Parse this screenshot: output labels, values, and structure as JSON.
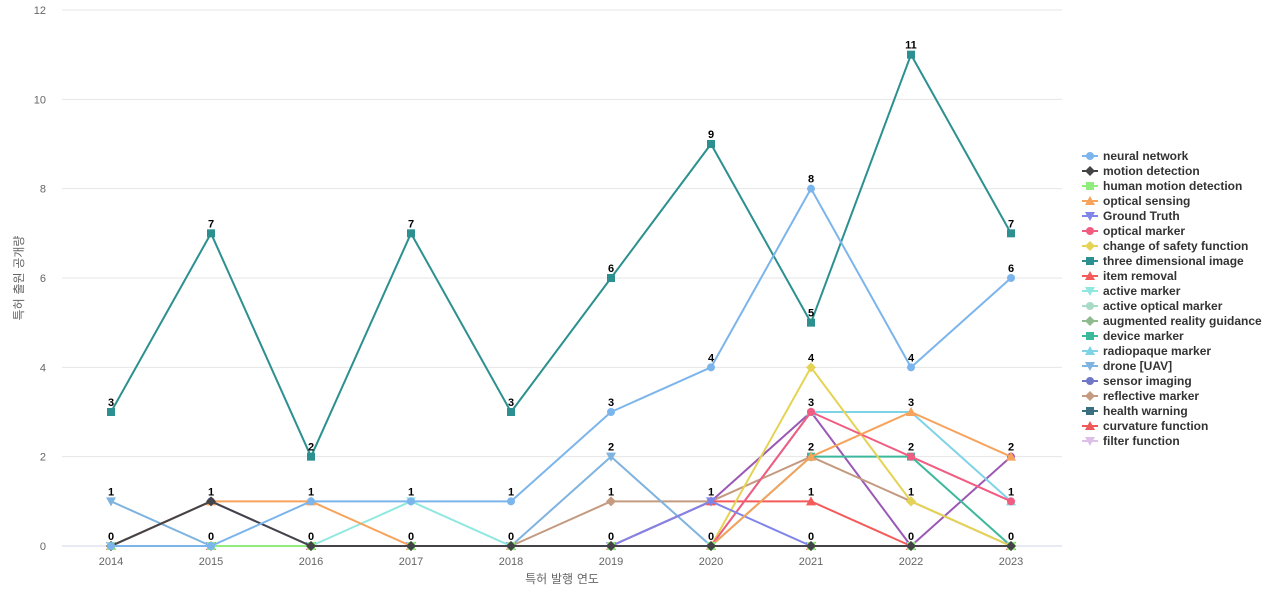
{
  "chart_data": {
    "type": "line",
    "xlabel": "특허 발행 연도",
    "ylabel": "특허 출원 공개량",
    "x": [
      "2014",
      "2015",
      "2016",
      "2017",
      "2018",
      "2019",
      "2020",
      "2021",
      "2022",
      "2023"
    ],
    "ylim": [
      0,
      12
    ],
    "yticks": [
      "0",
      "2",
      "4",
      "6",
      "8",
      "10",
      "12"
    ],
    "grid": true,
    "legend_position": "right",
    "series": [
      {
        "name": "neural network",
        "color": "#7cb5ec",
        "marker": "circle",
        "values": [
          0,
          0,
          1,
          1,
          1,
          3,
          4,
          8,
          4,
          6
        ]
      },
      {
        "name": "motion detection",
        "color": "#434348",
        "marker": "diamond",
        "values": [
          0,
          1,
          0,
          0,
          0,
          0,
          0,
          0,
          0,
          0
        ]
      },
      {
        "name": "human motion detection",
        "color": "#90ed7d",
        "marker": "square",
        "values": [
          0,
          0,
          0,
          0,
          0,
          0,
          0,
          0,
          0,
          0
        ]
      },
      {
        "name": "optical sensing",
        "color": "#f7a35c",
        "marker": "triangle",
        "values": [
          0,
          1,
          1,
          0,
          0,
          0,
          0,
          2,
          3,
          2
        ]
      },
      {
        "name": "Ground Truth",
        "color": "#8085e9",
        "marker": "triangle-down",
        "values": [
          0,
          0,
          0,
          0,
          0,
          0,
          1,
          0,
          0,
          0
        ]
      },
      {
        "name": "optical marker",
        "color": "#f15c80",
        "marker": "circle",
        "values": [
          0,
          0,
          0,
          0,
          0,
          0,
          0,
          3,
          2,
          1
        ]
      },
      {
        "name": "change of safety function",
        "color": "#e4d354",
        "marker": "diamond",
        "values": [
          0,
          0,
          0,
          0,
          0,
          0,
          0,
          4,
          1,
          0
        ]
      },
      {
        "name": "three dimensional image",
        "color": "#2b908f",
        "marker": "square",
        "values": [
          3,
          7,
          2,
          7,
          3,
          6,
          9,
          5,
          11,
          7
        ]
      },
      {
        "name": "item removal",
        "color": "#f45b5b",
        "marker": "triangle",
        "values": [
          0,
          0,
          0,
          0,
          0,
          0,
          1,
          1,
          0,
          0
        ]
      },
      {
        "name": "active marker",
        "color": "#91e8e1",
        "marker": "triangle-down",
        "values": [
          0,
          0,
          0,
          1,
          0,
          0,
          0,
          0,
          0,
          0
        ]
      },
      {
        "name": "active optical marker",
        "color": "#a8dbc5",
        "marker": "circle",
        "values": [
          0,
          0,
          0,
          0,
          0,
          0,
          0,
          0,
          0,
          0
        ]
      },
      {
        "name": "augmented reality guidance",
        "color": "#8fbc8f",
        "marker": "diamond",
        "values": [
          0,
          0,
          0,
          0,
          0,
          0,
          0,
          0,
          0,
          0
        ]
      },
      {
        "name": "device marker",
        "color": "#3cb89c",
        "marker": "square",
        "values": [
          0,
          0,
          0,
          0,
          0,
          0,
          0,
          2,
          2,
          0
        ]
      },
      {
        "name": "radiopaque marker",
        "color": "#7fd3e6",
        "marker": "triangle",
        "values": [
          0,
          0,
          0,
          0,
          0,
          0,
          0,
          3,
          3,
          1
        ]
      },
      {
        "name": "drone [UAV]",
        "color": "#7fb3e0",
        "marker": "triangle-down",
        "values": [
          1,
          0,
          0,
          0,
          0,
          2,
          0,
          0,
          0,
          0
        ]
      },
      {
        "name": "sensor imaging",
        "color": "#6f78c8",
        "marker": "circle",
        "values": [
          0,
          1,
          0,
          0,
          0,
          0,
          0,
          0,
          0,
          0
        ]
      },
      {
        "name": "reflective marker",
        "color": "#c49a80",
        "marker": "diamond",
        "values": [
          0,
          0,
          0,
          0,
          0,
          1,
          1,
          2,
          1,
          0
        ]
      },
      {
        "name": "health warning",
        "color": "#3a6f80",
        "marker": "square",
        "values": [
          0,
          0,
          0,
          0,
          0,
          0,
          0,
          0,
          0,
          0
        ]
      },
      {
        "name": "curvature function",
        "color": "#ee5a5a",
        "marker": "triangle",
        "values": [
          0,
          0,
          0,
          0,
          0,
          0,
          0,
          0,
          0,
          0
        ]
      },
      {
        "name": "filter function",
        "color": "#dcc0e8",
        "marker": "triangle-down",
        "values": [
          0,
          0,
          0,
          0,
          0,
          0,
          0,
          0,
          0,
          0
        ]
      },
      {
        "name": "",
        "color": "#9b59b6",
        "marker": "circle",
        "values": [
          0,
          0,
          0,
          0,
          0,
          0,
          1,
          3,
          0,
          2
        ]
      }
    ],
    "data_labels": [
      {
        "x": "2014",
        "text": "3",
        "y": 3
      },
      {
        "x": "2014",
        "text": "1",
        "y": 1
      },
      {
        "x": "2014",
        "text": "0",
        "y": 0
      },
      {
        "x": "2015",
        "text": "7",
        "y": 7
      },
      {
        "x": "2015",
        "text": "1",
        "y": 1
      },
      {
        "x": "2015",
        "text": "0",
        "y": 0
      },
      {
        "x": "2016",
        "text": "2",
        "y": 2
      },
      {
        "x": "2016",
        "text": "1",
        "y": 1
      },
      {
        "x": "2016",
        "text": "0",
        "y": 0
      },
      {
        "x": "2017",
        "text": "7",
        "y": 7
      },
      {
        "x": "2017",
        "text": "1",
        "y": 1
      },
      {
        "x": "2017",
        "text": "0",
        "y": 0
      },
      {
        "x": "2018",
        "text": "3",
        "y": 3
      },
      {
        "x": "2018",
        "text": "1",
        "y": 1
      },
      {
        "x": "2018",
        "text": "0",
        "y": 0
      },
      {
        "x": "2019",
        "text": "6",
        "y": 6
      },
      {
        "x": "2019",
        "text": "3",
        "y": 3
      },
      {
        "x": "2019",
        "text": "2",
        "y": 2
      },
      {
        "x": "2019",
        "text": "1",
        "y": 1
      },
      {
        "x": "2019",
        "text": "0",
        "y": 0
      },
      {
        "x": "2020",
        "text": "9",
        "y": 9
      },
      {
        "x": "2020",
        "text": "4",
        "y": 4
      },
      {
        "x": "2020",
        "text": "1",
        "y": 1
      },
      {
        "x": "2020",
        "text": "0",
        "y": 0
      },
      {
        "x": "2021",
        "text": "8",
        "y": 8
      },
      {
        "x": "2021",
        "text": "5",
        "y": 5
      },
      {
        "x": "2021",
        "text": "4",
        "y": 4
      },
      {
        "x": "2021",
        "text": "3",
        "y": 3
      },
      {
        "x": "2021",
        "text": "2",
        "y": 2
      },
      {
        "x": "2021",
        "text": "1",
        "y": 1
      },
      {
        "x": "2021",
        "text": "0",
        "y": 0
      },
      {
        "x": "2022",
        "text": "11",
        "y": 11
      },
      {
        "x": "2022",
        "text": "4",
        "y": 4
      },
      {
        "x": "2022",
        "text": "3",
        "y": 3
      },
      {
        "x": "2022",
        "text": "2",
        "y": 2
      },
      {
        "x": "2022",
        "text": "1",
        "y": 1
      },
      {
        "x": "2022",
        "text": "0",
        "y": 0
      },
      {
        "x": "2023",
        "text": "7",
        "y": 7
      },
      {
        "x": "2023",
        "text": "6",
        "y": 6
      },
      {
        "x": "2023",
        "text": "2",
        "y": 2
      },
      {
        "x": "2023",
        "text": "1",
        "y": 1
      },
      {
        "x": "2023",
        "text": "0",
        "y": 0
      }
    ]
  }
}
